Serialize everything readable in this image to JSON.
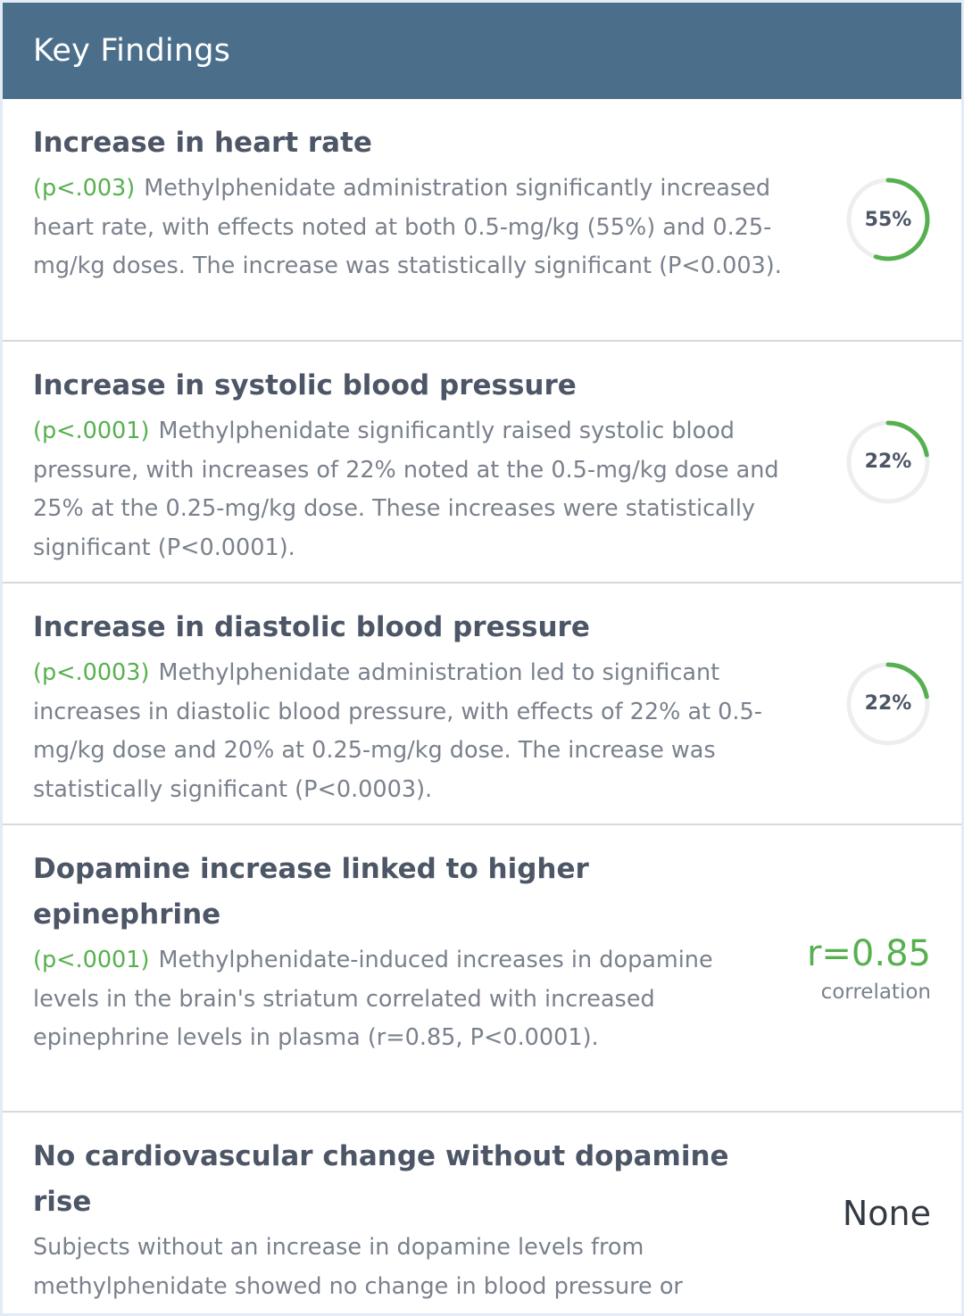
{
  "header": {
    "title": "Key Findings"
  },
  "findings": [
    {
      "title": "Increase in heart rate",
      "p_value": "(p<.003)",
      "description": "Methylphenidate administration significantly increased heart rate, with effects noted at both 0.5-mg/kg (55%) and 0.25-mg/kg doses. The increase was statistically significant (P<0.003).",
      "metric_label": "55%",
      "metric_fraction": 0.55
    },
    {
      "title": "Increase in systolic blood pressure",
      "p_value": "(p<.0001)",
      "description": "Methylphenidate significantly raised systolic blood pressure, with increases of 22% noted at the 0.5-mg/kg dose and 25% at the 0.25-mg/kg dose. These increases were statistically significant (P<0.0001).",
      "metric_label": "22%",
      "metric_fraction": 0.22
    },
    {
      "title": "Increase in diastolic blood pressure",
      "p_value": "(p<.0003)",
      "description": "Methylphenidate administration led to significant increases in diastolic blood pressure, with effects of 22% at 0.5-mg/kg dose and 20% at 0.25-mg/kg dose. The increase was statistically significant (P<0.0003).",
      "metric_label": "22%",
      "metric_fraction": 0.22
    },
    {
      "title": "Dopamine increase linked to higher epinephrine",
      "p_value": "(p<.0001)",
      "description": "Methylphenidate-induced increases in dopamine levels in the brain's striatum correlated with increased epinephrine levels in plasma (r=0.85, P<0.0001).",
      "metric_value": "r=0.85",
      "metric_caption": "correlation"
    },
    {
      "title": "No cardiovascular change without dopamine rise",
      "description": "Subjects without an increase in dopamine levels from methylphenidate showed no change in blood pressure or plasma epinephrine levels.",
      "metric_value": "None"
    }
  ],
  "colors": {
    "header_bg": "#4b6f8b",
    "accent_green": "#57b04f",
    "ring_track": "#eeeeee"
  }
}
